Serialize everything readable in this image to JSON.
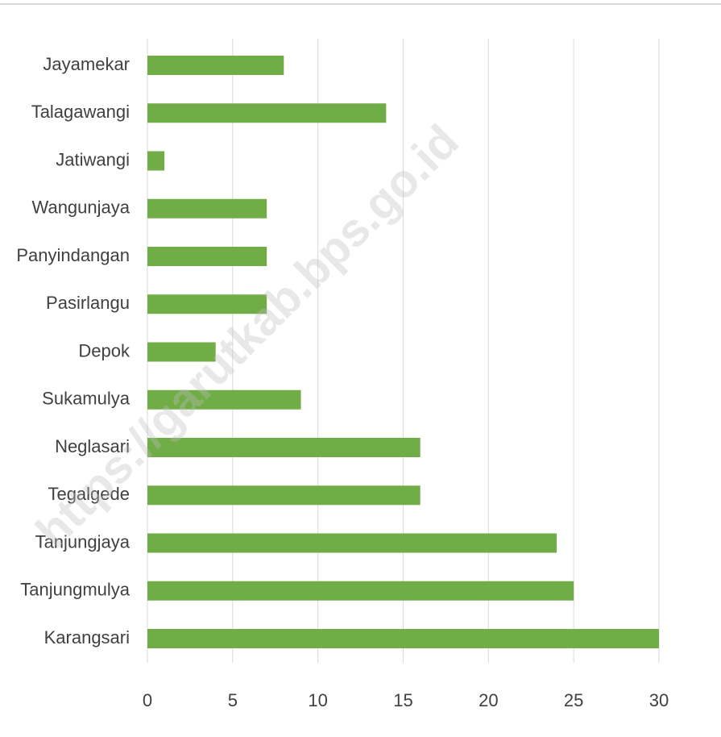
{
  "chart_data": {
    "type": "bar",
    "orientation": "horizontal",
    "categories": [
      "Jayamekar",
      "Talagawangi",
      "Jatiwangi",
      "Wangunjaya",
      "Panyindangan",
      "Pasirlangu",
      "Depok",
      "Sukamulya",
      "Neglasari",
      "Tegalgede",
      "Tanjungjaya",
      "Tanjungmulya",
      "Karangsari"
    ],
    "values": [
      8,
      14,
      1,
      7,
      7,
      7,
      4,
      9,
      16,
      16,
      24,
      25,
      30
    ],
    "color": "#70ad47",
    "xlim": [
      0,
      30
    ],
    "xticks": [
      0,
      5,
      10,
      15,
      20,
      25,
      30
    ],
    "grid": true,
    "watermark": "https://garutkab.bps.go.id"
  }
}
